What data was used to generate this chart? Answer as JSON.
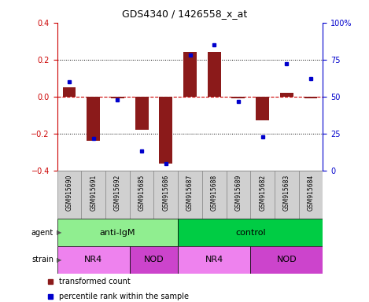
{
  "title": "GDS4340 / 1426558_x_at",
  "samples": [
    "GSM915690",
    "GSM915691",
    "GSM915692",
    "GSM915685",
    "GSM915686",
    "GSM915687",
    "GSM915688",
    "GSM915689",
    "GSM915682",
    "GSM915683",
    "GSM915684"
  ],
  "transformed_count": [
    0.05,
    -0.24,
    -0.01,
    -0.18,
    -0.36,
    0.24,
    0.24,
    -0.01,
    -0.13,
    0.02,
    -0.01
  ],
  "percentile_rank": [
    60,
    22,
    48,
    13,
    5,
    78,
    85,
    47,
    23,
    72,
    62
  ],
  "ylim_left": [
    -0.4,
    0.4
  ],
  "ylim_right": [
    0,
    100
  ],
  "yticks_left": [
    -0.4,
    -0.2,
    0.0,
    0.2,
    0.4
  ],
  "yticks_right": [
    0,
    25,
    50,
    75,
    100
  ],
  "ytick_labels_right": [
    "0",
    "25",
    "50",
    "75",
    "100%"
  ],
  "bar_color": "#8B1A1A",
  "dot_color": "#0000CC",
  "zero_line_color": "#CC0000",
  "dotted_line_color": "#000000",
  "agent_labels": [
    {
      "label": "anti-IgM",
      "start": 0,
      "end": 5,
      "color": "#90EE90"
    },
    {
      "label": "control",
      "start": 5,
      "end": 11,
      "color": "#00CC44"
    }
  ],
  "strain_labels": [
    {
      "label": "NR4",
      "start": 0,
      "end": 3,
      "color": "#EE82EE"
    },
    {
      "label": "NOD",
      "start": 3,
      "end": 5,
      "color": "#CC44CC"
    },
    {
      "label": "NR4",
      "start": 5,
      "end": 8,
      "color": "#EE82EE"
    },
    {
      "label": "NOD",
      "start": 8,
      "end": 11,
      "color": "#CC44CC"
    }
  ],
  "sample_box_color": "#D0D0D0",
  "sample_box_edge": "#888888",
  "legend_bar_color": "#8B1A1A",
  "legend_dot_color": "#0000CC",
  "legend_text1": "transformed count",
  "legend_text2": "percentile rank within the sample",
  "bg_color": "#FFFFFF",
  "plot_bg_color": "#FFFFFF",
  "tick_color_left": "#CC0000",
  "tick_color_right": "#0000CC"
}
